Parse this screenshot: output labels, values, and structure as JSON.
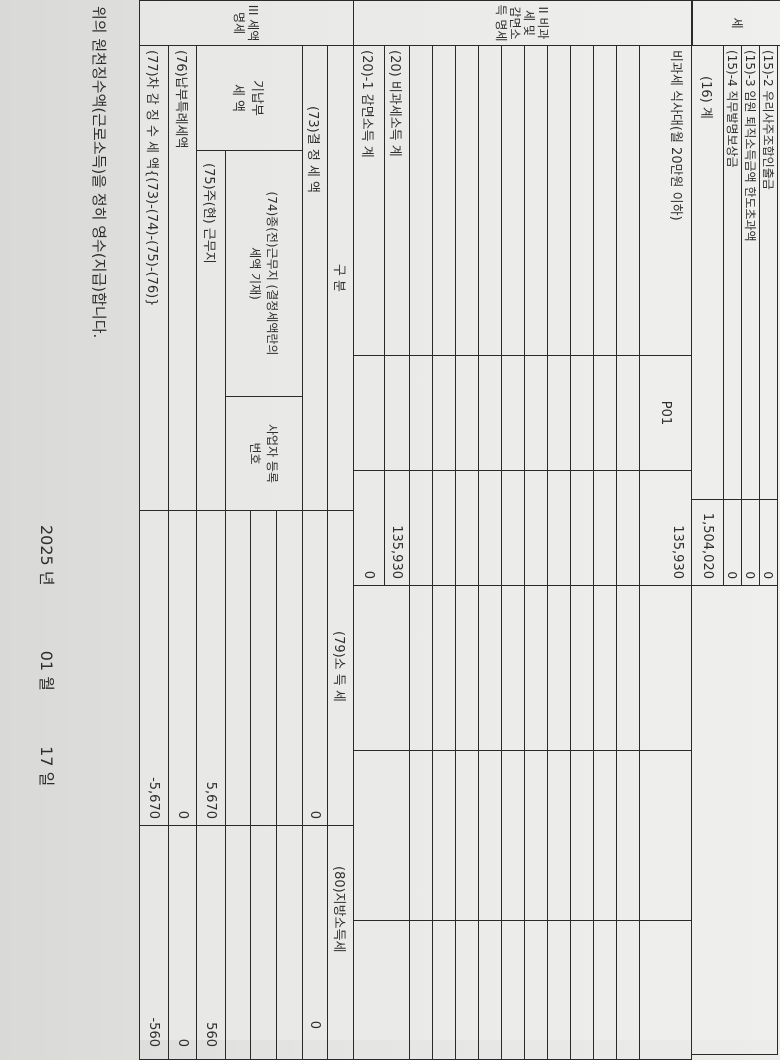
{
  "section1": {
    "label": "세",
    "rows": [
      {
        "label": "(15)-2 우리사주조합인출금",
        "value": "0"
      },
      {
        "label": "(15)-3 임원 퇴직소득금액 한도초과액",
        "value": "0"
      },
      {
        "label": "(15)-4 직무발명보상금",
        "value": "0"
      },
      {
        "label": "(16)          계",
        "value": "1,504,020"
      }
    ]
  },
  "section2": {
    "label": "II 비과세 및 감면소득 명세",
    "meal": {
      "label": "비과세 식사대(월 20만원 이하)",
      "code": "P01",
      "value": "135,930"
    },
    "nontax_total": {
      "label": "(20) 비과세소득 계",
      "value": "135,930"
    },
    "reduced_total": {
      "label": "(20)-1 감면소득 계",
      "value": "0"
    }
  },
  "section3": {
    "label": "III 세액명세",
    "header": {
      "category": "구          분",
      "income_tax": "(79)소    득    세",
      "local_tax": "(80)지방소득세"
    },
    "determined": {
      "label": "(73)결    정    세    액",
      "income_tax": "0",
      "local_tax": "0"
    },
    "prepaid_label": "기납부 세 액",
    "previous": {
      "label": "(74)종(전)근무지 (결정세액란의 세액 기재)",
      "bizno_label": "사업자 등록번호"
    },
    "current": {
      "label": "(75)주(현) 근무지",
      "income_tax": "5,670",
      "local_tax": "560"
    },
    "special": {
      "label": "(76)납부특례세액",
      "income_tax": "0",
      "local_tax": "0"
    },
    "net": {
      "label": "(77)차 감 징 수 세 액{(73)-(74)-(75)-(76)}",
      "income_tax": "-5,670",
      "local_tax": "-560"
    }
  },
  "footer": {
    "statement": "위의 원천징수액(근로소득)을 정히 영수(지급)합니다.",
    "year": "2025",
    "year_unit": "년",
    "month": "01",
    "month_unit": "월",
    "day": "17",
    "day_unit": "일"
  }
}
